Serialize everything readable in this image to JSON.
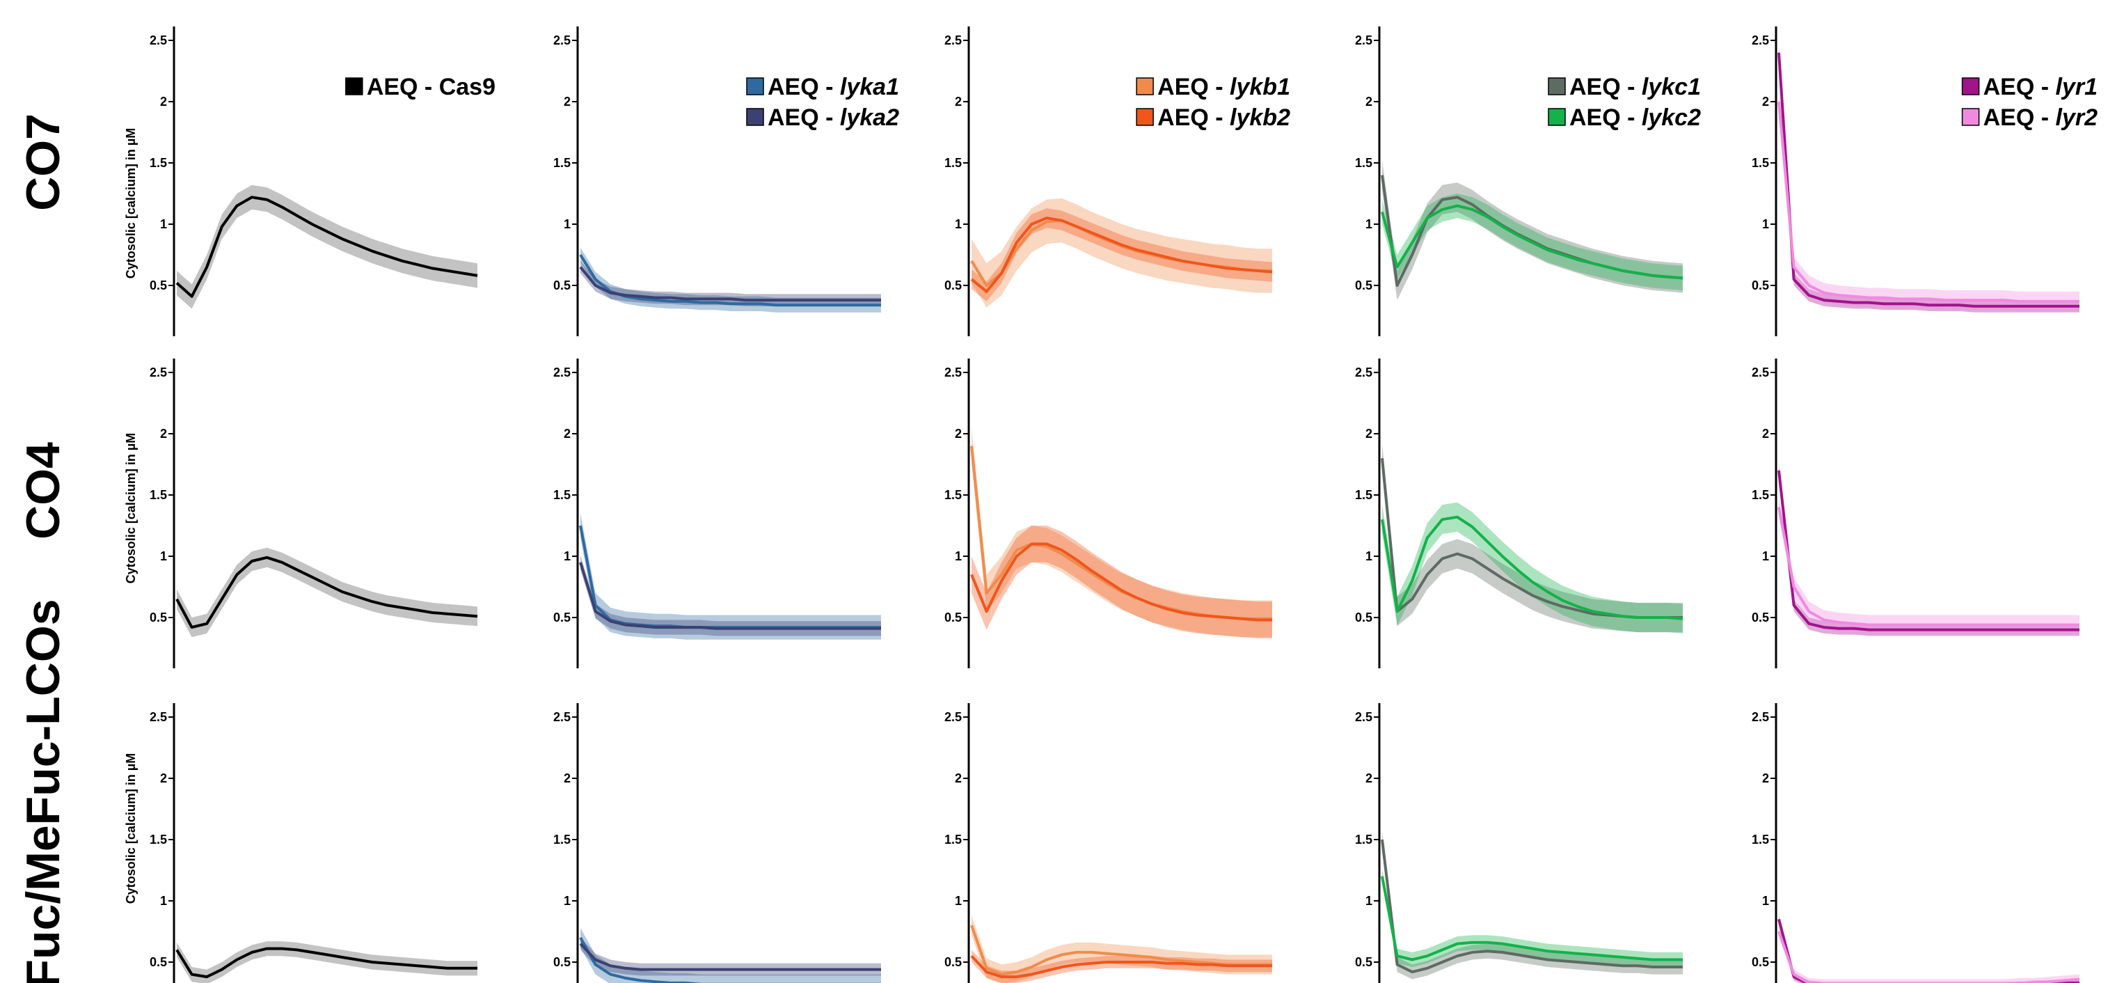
{
  "figure": {
    "rows": [
      {
        "label": "CO7"
      },
      {
        "label": "CO4"
      },
      {
        "label": "Fuc/MeFuc-LCOs"
      }
    ],
    "ylabel": "Cytosolic [calcium] in µM",
    "ytick_labels": [
      "0.5",
      "1",
      "1.5",
      "2",
      "2.5"
    ]
  },
  "colors": {
    "Cas9": "#000000",
    "Cas9_band": "#bdbdbd",
    "lyka1": "#2e6aa1",
    "lyka2": "#3b4173",
    "lykb1": "#ef8c4c",
    "lykb2": "#f0561c",
    "lykc1": "#5d6b62",
    "lykc2": "#13b24a",
    "lyr1": "#a0148c",
    "lyr2": "#f08ae0"
  },
  "legends": [
    [
      {
        "prefix": "AEQ - ",
        "gene": "Cas9",
        "italic": false,
        "color": "#000000"
      }
    ],
    [
      {
        "prefix": "AEQ - ",
        "gene": "lyka1",
        "italic": true,
        "color": "#2e6aa1"
      },
      {
        "prefix": "AEQ - ",
        "gene": "lyka2",
        "italic": true,
        "color": "#3b4173"
      }
    ],
    [
      {
        "prefix": "AEQ - ",
        "gene": "lykb1",
        "italic": true,
        "color": "#ef8c4c"
      },
      {
        "prefix": "AEQ - ",
        "gene": "lykb2",
        "italic": true,
        "color": "#f0561c"
      }
    ],
    [
      {
        "prefix": "AEQ - ",
        "gene": "lykc1",
        "italic": true,
        "color": "#5d6b62"
      },
      {
        "prefix": "AEQ - ",
        "gene": "lykc2",
        "italic": true,
        "color": "#13b24a"
      }
    ],
    [
      {
        "prefix": "AEQ - ",
        "gene": "lyr1",
        "italic": true,
        "color": "#a0148c"
      },
      {
        "prefix": "AEQ - ",
        "gene": "lyr2",
        "italic": true,
        "color": "#f08ae0"
      }
    ]
  ],
  "chart_data": {
    "type": "line",
    "layout": "grid 3 rows x 5 columns",
    "y_tick_labels_shown": [
      0.5,
      1,
      1.5,
      2,
      2.5
    ],
    "x": [
      0,
      0.05,
      0.1,
      0.15,
      0.2,
      0.25,
      0.3,
      0.35,
      0.4,
      0.45,
      0.5,
      0.55,
      0.6,
      0.65,
      0.7,
      0.75,
      0.8,
      0.85,
      0.9,
      0.95,
      1
    ],
    "ylim": [
      0.25,
      2.55
    ],
    "panels": [
      {
        "row": "CO7",
        "series": [
          {
            "name": "AEQ - Cas9",
            "color": "#000000",
            "band": 0.1,
            "values": [
              0.52,
              0.41,
              0.65,
              0.98,
              1.15,
              1.22,
              1.2,
              1.14,
              1.07,
              1.0,
              0.94,
              0.88,
              0.83,
              0.78,
              0.74,
              0.7,
              0.67,
              0.64,
              0.62,
              0.6,
              0.58
            ]
          }
        ]
      },
      {
        "row": "CO7",
        "series": [
          {
            "name": "AEQ - lyka1",
            "color": "#2e6aa1",
            "band": 0.06,
            "values": [
              0.75,
              0.55,
              0.45,
              0.41,
              0.39,
              0.38,
              0.37,
              0.37,
              0.36,
              0.36,
              0.35,
              0.35,
              0.35,
              0.34,
              0.34,
              0.34,
              0.34,
              0.34,
              0.34,
              0.34,
              0.34
            ]
          },
          {
            "name": "AEQ - lyka2",
            "color": "#3b4173",
            "band": 0.05,
            "values": [
              0.65,
              0.5,
              0.44,
              0.42,
              0.41,
              0.4,
              0.4,
              0.39,
              0.39,
              0.39,
              0.39,
              0.38,
              0.38,
              0.38,
              0.38,
              0.38,
              0.38,
              0.38,
              0.38,
              0.38,
              0.38
            ]
          }
        ]
      },
      {
        "row": "CO7",
        "series": [
          {
            "name": "AEQ - lykb1",
            "color": "#ef8c4c",
            "band": 0.18,
            "values": [
              0.7,
              0.5,
              0.6,
              0.8,
              0.95,
              1.02,
              1.03,
              0.98,
              0.92,
              0.87,
              0.82,
              0.78,
              0.75,
              0.72,
              0.7,
              0.68,
              0.66,
              0.65,
              0.63,
              0.62,
              0.62
            ]
          },
          {
            "name": "AEQ - lykb2",
            "color": "#f0561c",
            "band": 0.08,
            "values": [
              0.55,
              0.45,
              0.6,
              0.85,
              1.0,
              1.05,
              1.03,
              0.98,
              0.93,
              0.88,
              0.83,
              0.79,
              0.76,
              0.73,
              0.7,
              0.68,
              0.66,
              0.64,
              0.63,
              0.62,
              0.61
            ]
          }
        ]
      },
      {
        "row": "CO7",
        "series": [
          {
            "name": "AEQ - lykc1",
            "color": "#5d6b62",
            "band": 0.12,
            "values": [
              1.4,
              0.5,
              0.75,
              1.05,
              1.2,
              1.22,
              1.16,
              1.07,
              0.99,
              0.92,
              0.86,
              0.8,
              0.76,
              0.72,
              0.68,
              0.65,
              0.62,
              0.6,
              0.58,
              0.57,
              0.56
            ]
          },
          {
            "name": "AEQ - lykc2",
            "color": "#13b24a",
            "band": 0.1,
            "values": [
              1.1,
              0.65,
              0.85,
              1.05,
              1.12,
              1.15,
              1.12,
              1.06,
              0.98,
              0.91,
              0.85,
              0.79,
              0.75,
              0.71,
              0.68,
              0.65,
              0.62,
              0.6,
              0.58,
              0.57,
              0.56
            ]
          }
        ]
      },
      {
        "row": "CO7",
        "series": [
          {
            "name": "AEQ - lyr1",
            "color": "#a0148c",
            "band": 0.05,
            "values": [
              2.4,
              0.55,
              0.42,
              0.38,
              0.37,
              0.36,
              0.36,
              0.35,
              0.35,
              0.35,
              0.34,
              0.34,
              0.34,
              0.33,
              0.33,
              0.33,
              0.33,
              0.33,
              0.33,
              0.33,
              0.33
            ]
          },
          {
            "name": "AEQ - lyr2",
            "color": "#f08ae0",
            "band": 0.08,
            "values": [
              2.0,
              0.65,
              0.5,
              0.44,
              0.42,
              0.41,
              0.4,
              0.4,
              0.39,
              0.39,
              0.39,
              0.38,
              0.38,
              0.38,
              0.38,
              0.38,
              0.37,
              0.37,
              0.37,
              0.37,
              0.37
            ]
          }
        ]
      },
      {
        "row": "CO4",
        "series": [
          {
            "name": "AEQ - Cas9",
            "color": "#000000",
            "band": 0.08,
            "values": [
              0.65,
              0.42,
              0.45,
              0.65,
              0.85,
              0.96,
              0.99,
              0.95,
              0.89,
              0.83,
              0.77,
              0.71,
              0.67,
              0.63,
              0.6,
              0.58,
              0.56,
              0.54,
              0.53,
              0.52,
              0.51
            ]
          }
        ]
      },
      {
        "row": "CO4",
        "series": [
          {
            "name": "AEQ - lyka1",
            "color": "#2e6aa1",
            "band": 0.1,
            "values": [
              1.25,
              0.6,
              0.48,
              0.45,
              0.44,
              0.43,
              0.43,
              0.42,
              0.42,
              0.42,
              0.42,
              0.42,
              0.42,
              0.42,
              0.42,
              0.42,
              0.42,
              0.42,
              0.42,
              0.42,
              0.42
            ]
          },
          {
            "name": "AEQ - lyka2",
            "color": "#3b4173",
            "band": 0.06,
            "values": [
              0.95,
              0.55,
              0.47,
              0.44,
              0.43,
              0.42,
              0.42,
              0.42,
              0.42,
              0.41,
              0.41,
              0.41,
              0.41,
              0.41,
              0.41,
              0.41,
              0.41,
              0.41,
              0.41,
              0.41,
              0.41
            ]
          }
        ]
      },
      {
        "row": "CO4",
        "series": [
          {
            "name": "AEQ - lykb1",
            "color": "#ef8c4c",
            "band": 0.15,
            "values": [
              1.9,
              0.7,
              0.85,
              1.05,
              1.1,
              1.08,
              1.02,
              0.94,
              0.86,
              0.78,
              0.71,
              0.66,
              0.61,
              0.58,
              0.55,
              0.53,
              0.51,
              0.5,
              0.49,
              0.49,
              0.49
            ]
          },
          {
            "name": "AEQ - lykb2",
            "color": "#f0561c",
            "band": 0.15,
            "values": [
              0.85,
              0.55,
              0.8,
              1.0,
              1.1,
              1.1,
              1.05,
              0.97,
              0.88,
              0.8,
              0.72,
              0.66,
              0.61,
              0.57,
              0.54,
              0.52,
              0.51,
              0.5,
              0.49,
              0.48,
              0.48
            ]
          }
        ]
      },
      {
        "row": "CO4",
        "series": [
          {
            "name": "AEQ - lykc1",
            "color": "#5d6b62",
            "band": 0.12,
            "values": [
              1.8,
              0.55,
              0.65,
              0.85,
              0.98,
              1.02,
              0.98,
              0.9,
              0.82,
              0.75,
              0.68,
              0.63,
              0.59,
              0.56,
              0.53,
              0.52,
              0.51,
              0.5,
              0.5,
              0.5,
              0.5
            ]
          },
          {
            "name": "AEQ - lykc2",
            "color": "#13b24a",
            "band": 0.12,
            "values": [
              1.3,
              0.55,
              0.8,
              1.15,
              1.3,
              1.32,
              1.24,
              1.12,
              1.0,
              0.89,
              0.79,
              0.71,
              0.64,
              0.59,
              0.55,
              0.53,
              0.51,
              0.5,
              0.5,
              0.5,
              0.49
            ]
          }
        ]
      },
      {
        "row": "CO4",
        "series": [
          {
            "name": "AEQ - lyr1",
            "color": "#a0148c",
            "band": 0.05,
            "values": [
              1.7,
              0.6,
              0.45,
              0.42,
              0.41,
              0.41,
              0.4,
              0.4,
              0.4,
              0.4,
              0.4,
              0.4,
              0.4,
              0.4,
              0.4,
              0.4,
              0.4,
              0.4,
              0.4,
              0.4,
              0.4
            ]
          },
          {
            "name": "AEQ - lyr2",
            "color": "#f08ae0",
            "band": 0.08,
            "values": [
              1.4,
              0.75,
              0.55,
              0.48,
              0.46,
              0.45,
              0.44,
              0.44,
              0.44,
              0.44,
              0.44,
              0.44,
              0.44,
              0.44,
              0.44,
              0.44,
              0.44,
              0.44,
              0.44,
              0.44,
              0.44
            ]
          }
        ]
      },
      {
        "row": "Fuc/MeFuc-LCOs",
        "series": [
          {
            "name": "AEQ - Cas9",
            "color": "#000000",
            "band": 0.06,
            "values": [
              0.6,
              0.4,
              0.38,
              0.44,
              0.52,
              0.58,
              0.61,
              0.61,
              0.6,
              0.58,
              0.56,
              0.54,
              0.52,
              0.5,
              0.49,
              0.48,
              0.47,
              0.46,
              0.45,
              0.45,
              0.45
            ]
          }
        ]
      },
      {
        "row": "Fuc/MeFuc-LCOs",
        "series": [
          {
            "name": "AEQ - lyka1",
            "color": "#2e6aa1",
            "band": 0.08,
            "values": [
              0.7,
              0.48,
              0.4,
              0.37,
              0.35,
              0.34,
              0.33,
              0.33,
              0.32,
              0.32,
              0.32,
              0.32,
              0.32,
              0.32,
              0.32,
              0.32,
              0.32,
              0.32,
              0.32,
              0.32,
              0.32
            ]
          },
          {
            "name": "AEQ - lyka2",
            "color": "#3b4173",
            "band": 0.05,
            "values": [
              0.65,
              0.52,
              0.47,
              0.45,
              0.44,
              0.44,
              0.44,
              0.44,
              0.44,
              0.44,
              0.44,
              0.44,
              0.44,
              0.44,
              0.44,
              0.44,
              0.44,
              0.44,
              0.44,
              0.44,
              0.44
            ]
          }
        ]
      },
      {
        "row": "Fuc/MeFuc-LCOs",
        "series": [
          {
            "name": "AEQ - lykb1",
            "color": "#ef8c4c",
            "band": 0.08,
            "values": [
              0.8,
              0.45,
              0.4,
              0.42,
              0.46,
              0.52,
              0.56,
              0.58,
              0.58,
              0.57,
              0.56,
              0.55,
              0.54,
              0.52,
              0.51,
              0.5,
              0.49,
              0.48,
              0.48,
              0.48,
              0.48
            ]
          },
          {
            "name": "AEQ - lykb2",
            "color": "#f0561c",
            "band": 0.05,
            "values": [
              0.55,
              0.42,
              0.38,
              0.38,
              0.4,
              0.43,
              0.46,
              0.48,
              0.49,
              0.5,
              0.5,
              0.5,
              0.5,
              0.49,
              0.49,
              0.48,
              0.48,
              0.47,
              0.47,
              0.47,
              0.47
            ]
          }
        ]
      },
      {
        "row": "Fuc/MeFuc-LCOs",
        "series": [
          {
            "name": "AEQ - lykc1",
            "color": "#5d6b62",
            "band": 0.06,
            "values": [
              1.5,
              0.48,
              0.42,
              0.45,
              0.5,
              0.55,
              0.58,
              0.59,
              0.58,
              0.56,
              0.54,
              0.52,
              0.51,
              0.5,
              0.49,
              0.48,
              0.47,
              0.47,
              0.46,
              0.46,
              0.46
            ]
          },
          {
            "name": "AEQ - lykc2",
            "color": "#13b24a",
            "band": 0.06,
            "values": [
              1.2,
              0.55,
              0.52,
              0.55,
              0.6,
              0.65,
              0.66,
              0.66,
              0.65,
              0.63,
              0.61,
              0.59,
              0.58,
              0.57,
              0.56,
              0.55,
              0.54,
              0.53,
              0.52,
              0.52,
              0.52
            ]
          }
        ]
      },
      {
        "row": "Fuc/MeFuc-LCOs",
        "series": [
          {
            "name": "AEQ - lyr1",
            "color": "#a0148c",
            "band": 0.03,
            "values": [
              0.85,
              0.38,
              0.32,
              0.31,
              0.31,
              0.31,
              0.31,
              0.31,
              0.31,
              0.31,
              0.31,
              0.31,
              0.31,
              0.31,
              0.31,
              0.31,
              0.31,
              0.32,
              0.32,
              0.33,
              0.33
            ]
          },
          {
            "name": "AEQ - lyr2",
            "color": "#f08ae0",
            "band": 0.04,
            "values": [
              0.75,
              0.4,
              0.33,
              0.32,
              0.32,
              0.32,
              0.32,
              0.32,
              0.32,
              0.32,
              0.32,
              0.32,
              0.32,
              0.32,
              0.32,
              0.32,
              0.33,
              0.33,
              0.34,
              0.35,
              0.36
            ]
          }
        ]
      }
    ]
  }
}
